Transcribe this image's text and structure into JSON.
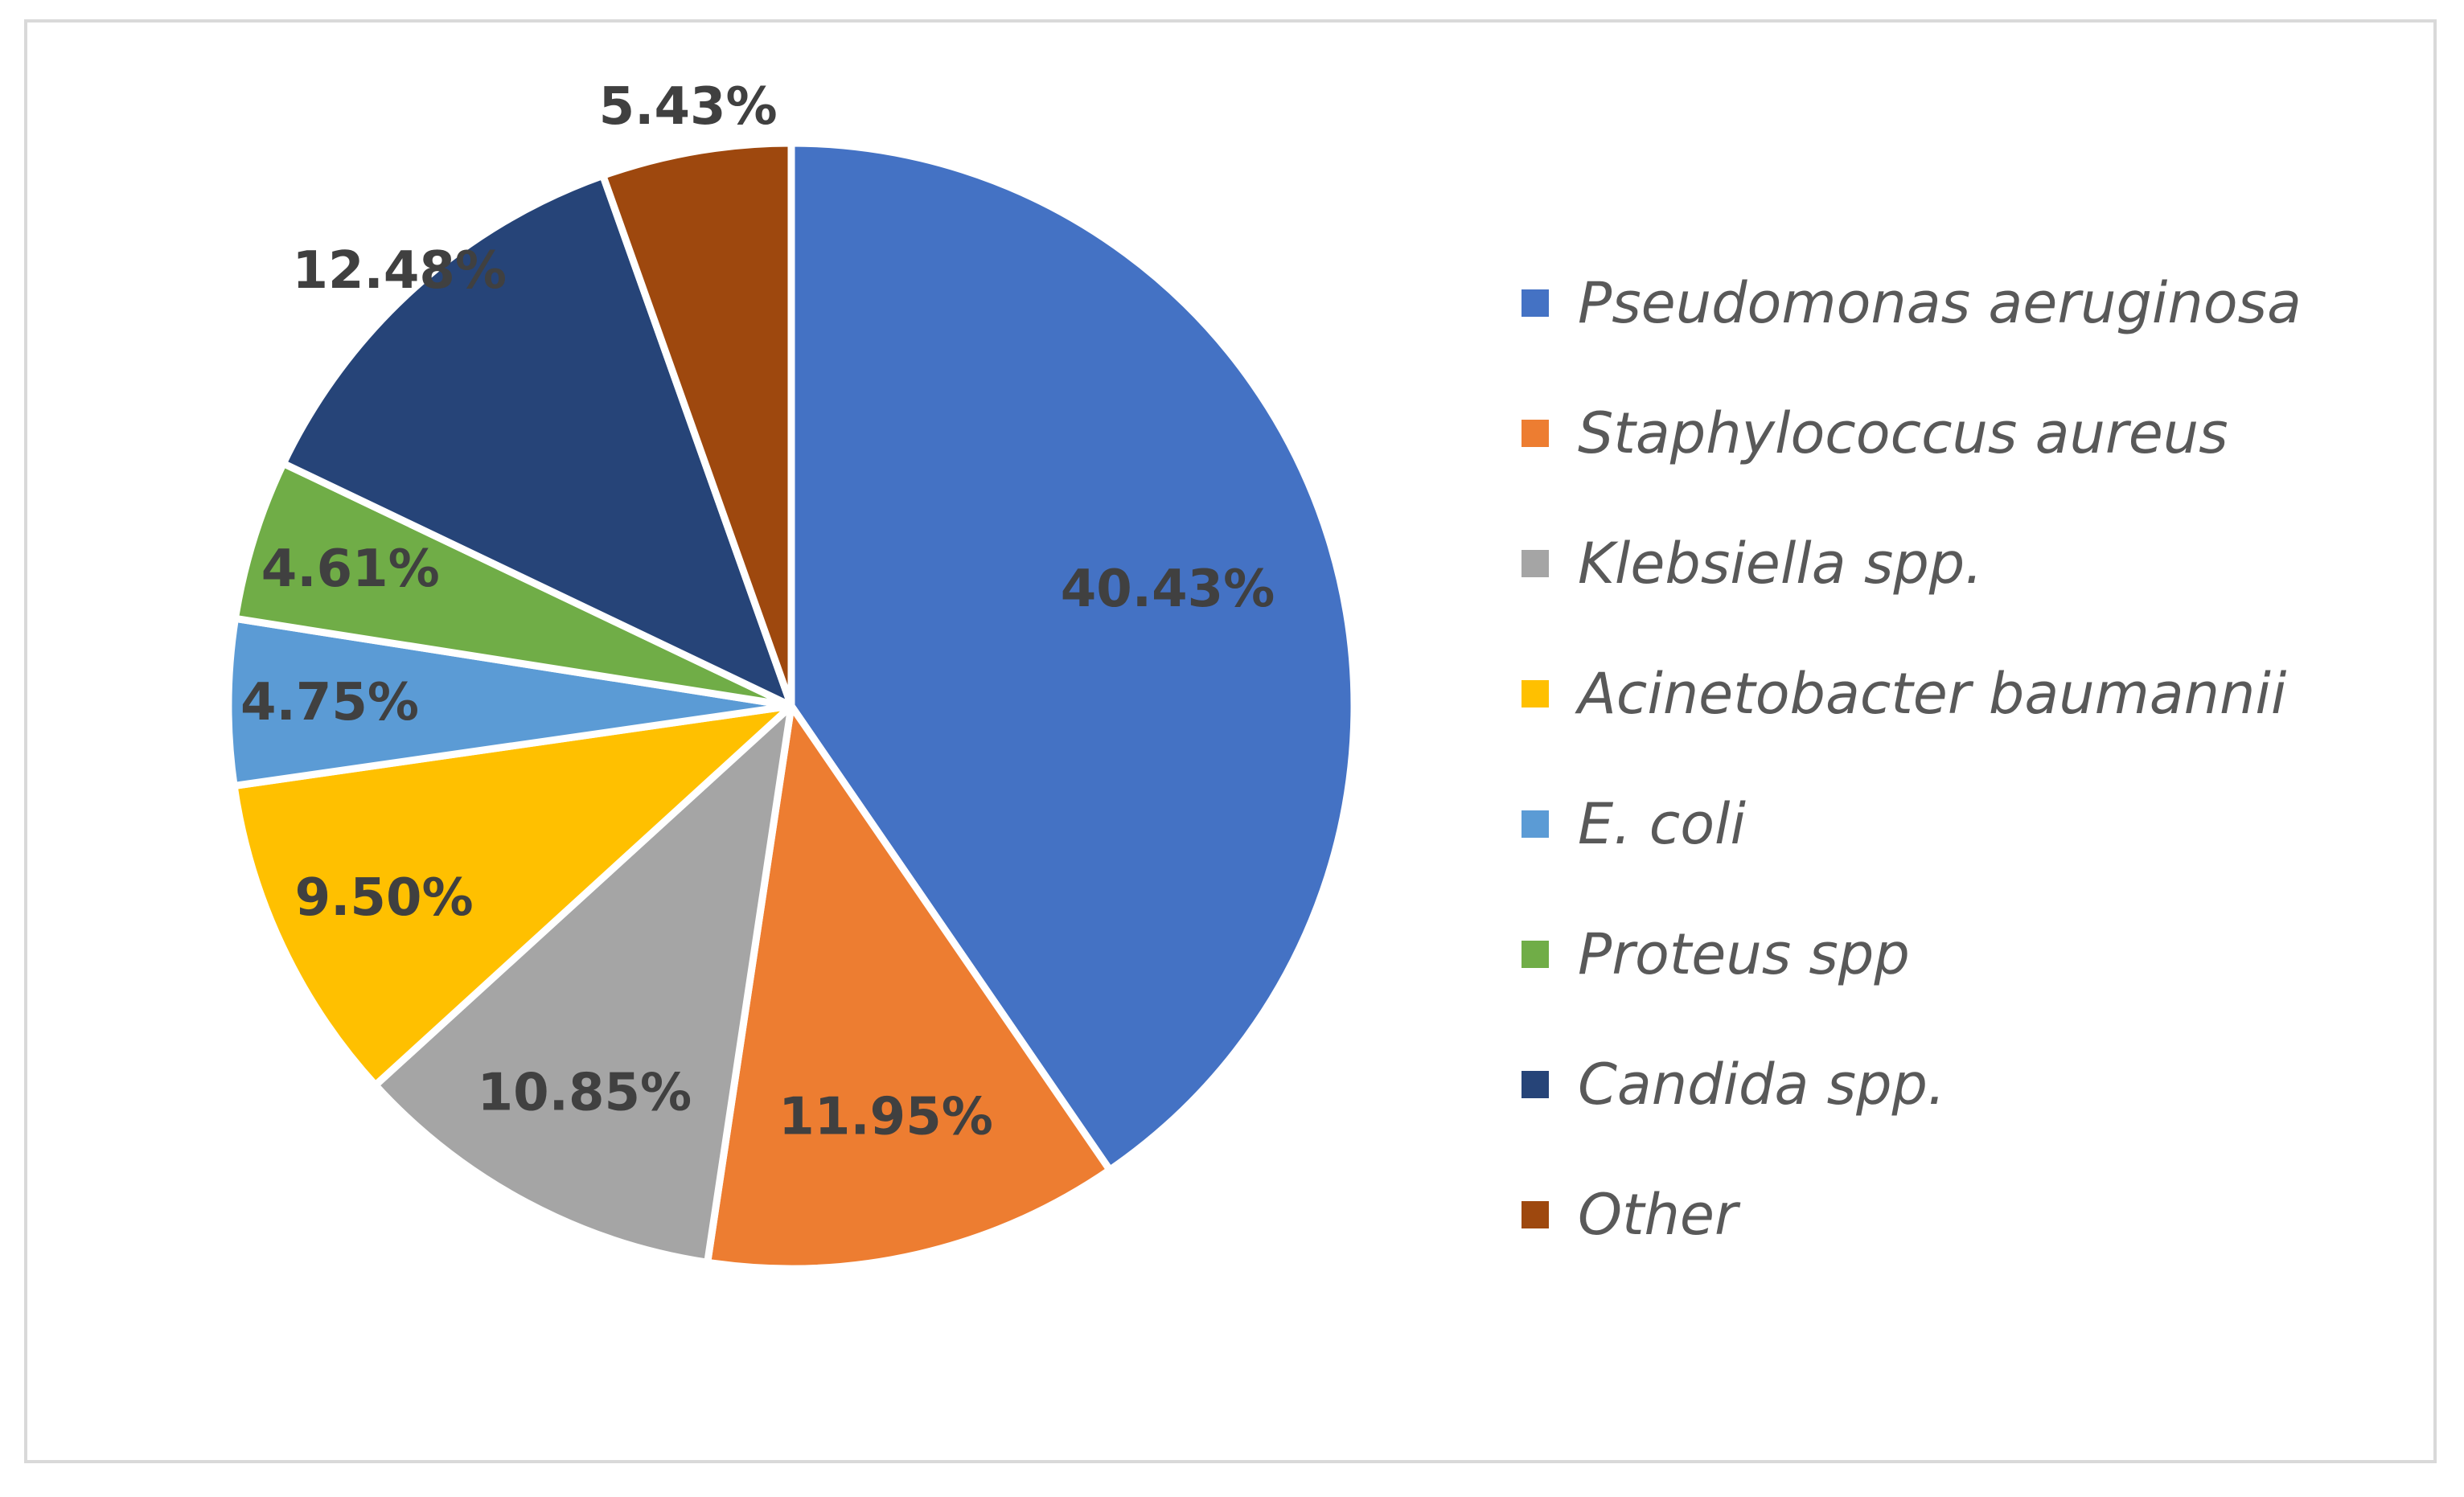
{
  "chart_data": {
    "type": "pie",
    "title": "",
    "start_angle_deg": 0,
    "direction": "clockwise",
    "legend_position": "right",
    "slices": [
      {
        "name": "Pseudomonas aeruginosa",
        "value": 40.43,
        "label": "40.43%",
        "color": "#4472C4"
      },
      {
        "name": "Staphylococcus aureus",
        "value": 11.95,
        "label": "11.95%",
        "color": "#ED7D31"
      },
      {
        "name": "Klebsiella spp.",
        "value": 10.85,
        "label": "10.85%",
        "color": "#A5A5A5"
      },
      {
        "name": "Acinetobacter baumannii",
        "value": 9.5,
        "label": "9.50%",
        "color": "#FFC000"
      },
      {
        "name": "E. coli",
        "value": 4.75,
        "label": "4.75%",
        "color": "#5B9BD5"
      },
      {
        "name": "Proteus spp",
        "value": 4.61,
        "label": "4.61%",
        "color": "#70AD47"
      },
      {
        "name": "Candida spp.",
        "value": 12.48,
        "label": "12.48%",
        "color": "#264478"
      },
      {
        "name": "Other",
        "value": 5.43,
        "label": "5.43%",
        "color": "#9E480E"
      }
    ]
  }
}
